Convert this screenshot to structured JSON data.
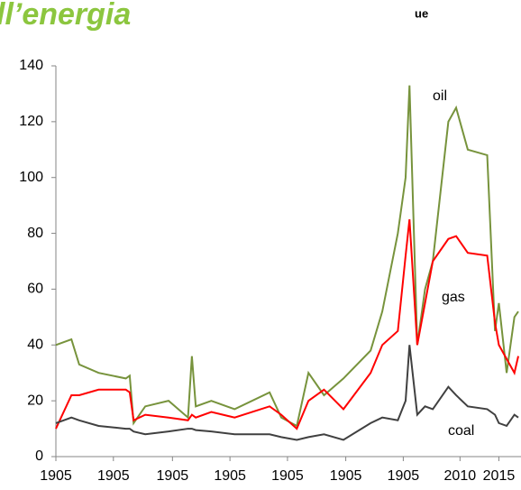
{
  "header": {
    "title": "ll’energia",
    "subtitle": "ue"
  },
  "chart_data": {
    "type": "line",
    "x": [
      1958,
      1960,
      1961,
      1963.5,
      1967,
      1967.5,
      1968,
      1969.5,
      1972.5,
      1975,
      1975.5,
      1976,
      1978,
      1981,
      1985.5,
      1987,
      1989,
      1990.5,
      1992.5,
      1995,
      1998.5,
      2000,
      2002,
      2003,
      2003.5,
      2004.5,
      2005.5,
      2006.5,
      2008.5,
      2009.5,
      2011,
      2013.5,
      2014.5,
      2015,
      2016,
      2017,
      2017.5
    ],
    "series": [
      {
        "name": "oil",
        "color": "#77933c",
        "values": [
          40,
          42,
          33,
          30,
          28,
          29,
          12,
          18,
          20,
          14,
          36,
          18,
          20,
          17,
          23,
          14,
          11,
          30,
          22,
          28,
          38,
          52,
          80,
          100,
          133,
          40,
          60,
          70,
          120,
          125,
          110,
          108,
          45,
          55,
          30,
          50,
          52
        ]
      },
      {
        "name": "gas",
        "color": "#ff0000",
        "values": [
          10,
          22,
          22,
          24,
          24,
          23,
          13,
          15,
          14,
          13,
          15,
          14,
          16,
          14,
          18,
          15,
          10,
          20,
          24,
          17,
          30,
          40,
          45,
          72,
          85,
          40,
          55,
          70,
          78,
          79,
          73,
          72,
          48,
          40,
          35,
          30,
          36
        ]
      },
      {
        "name": "coal",
        "color": "#404040",
        "values": [
          12,
          14,
          13,
          11,
          10,
          10,
          9,
          8,
          9,
          10,
          10,
          9.5,
          9,
          8,
          8,
          7,
          6,
          7,
          8,
          6,
          12,
          14,
          13,
          20,
          40,
          15,
          18,
          17,
          25,
          22,
          18,
          17,
          15,
          12,
          11,
          15,
          14
        ]
      }
    ],
    "xlim": [
      1958,
      2017.5
    ],
    "xticks": [
      {
        "value": 1958,
        "label": "1905"
      },
      {
        "value": 1965.4,
        "label": "1905"
      },
      {
        "value": 1973,
        "label": "1905"
      },
      {
        "value": 1980.4,
        "label": "1905"
      },
      {
        "value": 1987.8,
        "label": "1905"
      },
      {
        "value": 1995.3,
        "label": "1905"
      },
      {
        "value": 2002.7,
        "label": "1905"
      },
      2010,
      2015
    ],
    "ylim": [
      0,
      140
    ],
    "yticks": [
      0,
      20,
      40,
      60,
      80,
      100,
      120,
      140
    ]
  }
}
